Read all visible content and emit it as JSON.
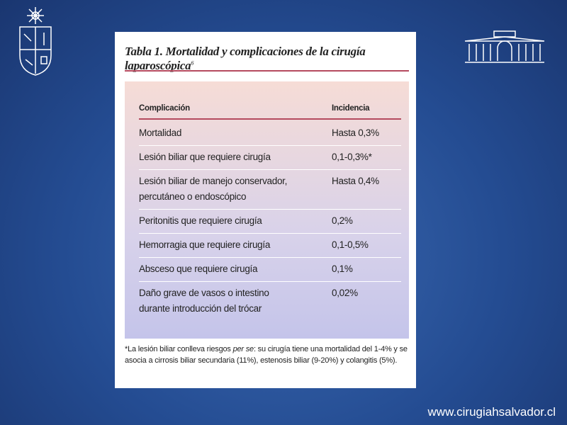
{
  "slide": {
    "table": {
      "title": "Tabla 1. Mortalidad y complicaciones de la cirugía laparoscópica",
      "title_sup": "6",
      "header": [
        "Complicación",
        "Incidencia"
      ],
      "rows": [
        [
          [
            "Mortalidad"
          ],
          "Hasta 0,3%"
        ],
        [
          [
            "Lesión biliar que requiere cirugía"
          ],
          "0,1-0,3%*"
        ],
        [
          [
            "Lesión biliar de manejo conservador,",
            "percutáneo o endoscópico"
          ],
          "Hasta 0,4%"
        ],
        [
          [
            "Peritonitis que requiere cirugía"
          ],
          "0,2%"
        ],
        [
          [
            "Hemorragia que requiere cirugía"
          ],
          "0,1-0,5%"
        ],
        [
          [
            "Absceso que requiere cirugía"
          ],
          "0,1%"
        ],
        [
          [
            "Daño grave de vasos o intestino",
            "durante introducción del trócar"
          ],
          "0,02%"
        ]
      ],
      "footnote": [
        "*La lesión biliar conlleva riesgos ",
        "per se",
        ": su cirugía tiene una mortalidad del 1-4% y se asocia a cirrosis biliar secundaria (11%), estenosis biliar (9-20%) y colangitis (5%)."
      ]
    },
    "url": "www.cirugiahsalvador.cl"
  }
}
